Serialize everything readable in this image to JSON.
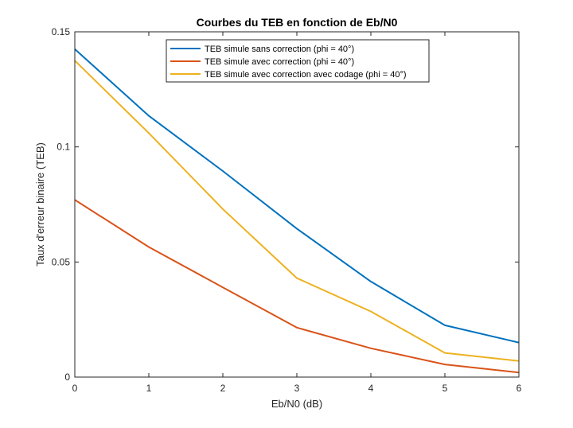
{
  "chart_data": {
    "type": "line",
    "title": "Courbes du TEB en fonction de Eb/N0",
    "xlabel": "Eb/N0 (dB)",
    "ylabel": "Taux d'erreur binaire (TEB)",
    "xlim": [
      0,
      6
    ],
    "ylim": [
      0,
      0.15
    ],
    "x": [
      0,
      1,
      2,
      3,
      4,
      5,
      6
    ],
    "x_ticks": [
      "0",
      "1",
      "2",
      "3",
      "4",
      "5",
      "6"
    ],
    "y_ticks": [
      {
        "value": 0,
        "label": "0"
      },
      {
        "value": 0.05,
        "label": "0.05"
      },
      {
        "value": 0.1,
        "label": "0.1"
      },
      {
        "value": 0.15,
        "label": "0.15"
      }
    ],
    "grid": false,
    "legend_position": "top",
    "series": [
      {
        "name": "TEB simule sans correction (phi = 40°)",
        "color": "#0072BD",
        "values": [
          0.1425,
          0.1135,
          0.0895,
          0.0645,
          0.0415,
          0.0225,
          0.015
        ]
      },
      {
        "name": "TEB simule avec correction (phi = 40°)",
        "color": "#D95319",
        "values": [
          0.077,
          0.0565,
          0.039,
          0.0215,
          0.0125,
          0.0055,
          0.002
        ]
      },
      {
        "name": "TEB simule avec correction avec codage (phi = 40°)",
        "color": "#EDB120",
        "values": [
          0.1375,
          0.106,
          0.073,
          0.043,
          0.0285,
          0.0105,
          0.007
        ]
      }
    ]
  }
}
